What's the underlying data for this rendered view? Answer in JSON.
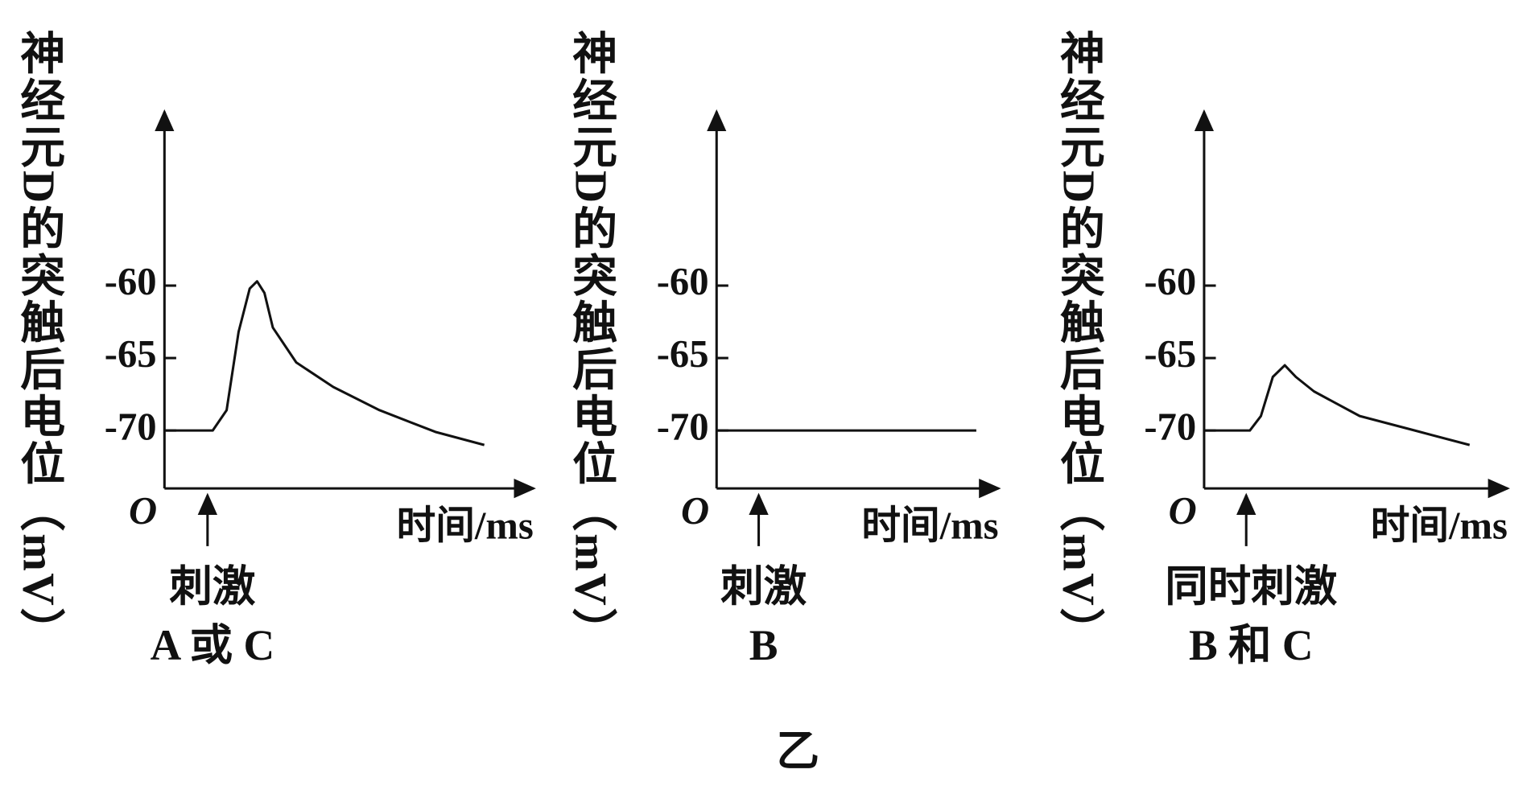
{
  "caption": "乙",
  "chart_data": [
    {
      "type": "line",
      "y_label": "神经元D的突触后电位（mV）",
      "x_label": "时间/ms",
      "origin_label": "O",
      "annotation": [
        "刺激",
        "A 或 C"
      ],
      "ylim": [
        -74,
        -48
      ],
      "yticks": [
        -70,
        -65,
        -60
      ],
      "xlim": [
        0,
        100
      ],
      "x": [
        0,
        13.8,
        17.8,
        21.2,
        24.4,
        26.5,
        28.6,
        31.0,
        37.7,
        48.3,
        61.5,
        77.5,
        91.5
      ],
      "values": [
        -70,
        -70,
        -68.6,
        -63.2,
        -60.2,
        -59.7,
        -60.5,
        -62.9,
        -65.3,
        -67.0,
        -68.6,
        -70.1,
        -71.0
      ],
      "color": "#111111"
    },
    {
      "type": "line",
      "y_label": "神经元D的突触后电位（mV）",
      "x_label": "时间/ms",
      "origin_label": "O",
      "annotation": [
        "刺激",
        "B"
      ],
      "ylim": [
        -74,
        -48
      ],
      "yticks": [
        -70,
        -65,
        -60
      ],
      "xlim": [
        0,
        100
      ],
      "x": [
        0,
        99
      ],
      "values": [
        -70,
        -70
      ],
      "color": "#111111"
    },
    {
      "type": "line",
      "y_label": "神经元D的突触后电位（mV）",
      "x_label": "时间/ms",
      "origin_label": "O",
      "annotation": [
        "同时刺激",
        "B 和 C"
      ],
      "ylim": [
        -74,
        -48
      ],
      "yticks": [
        -70,
        -65,
        -60
      ],
      "xlim": [
        0,
        100
      ],
      "x": [
        0,
        16.1,
        20,
        24.2,
        28.4,
        32.3,
        38.7,
        54.8,
        74.2,
        93.5
      ],
      "values": [
        -70,
        -70,
        -69,
        -66.3,
        -65.5,
        -66.3,
        -67.3,
        -69,
        -70,
        -71
      ],
      "color": "#111111"
    }
  ]
}
